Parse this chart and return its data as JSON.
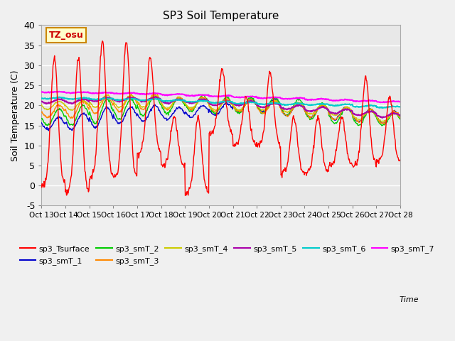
{
  "title": "SP3 Soil Temperature",
  "ylabel": "Soil Temperature (C)",
  "ylim": [
    -5,
    40
  ],
  "ytick_values": [
    -5,
    0,
    5,
    10,
    15,
    20,
    25,
    30,
    35,
    40
  ],
  "xtick_labels": [
    "Oct 13",
    "Oct 14",
    "Oct 15",
    "Oct 16",
    "Oct 17",
    "Oct 18",
    "Oct 19",
    "Oct 20",
    "Oct 21",
    "Oct 22",
    "Oct 23",
    "Oct 24",
    "Oct 25",
    "Oct 26",
    "Oct 27",
    "Oct 28"
  ],
  "annotation_text": "TZ_osu",
  "annotation_color": "#cc0000",
  "annotation_bg": "#ffffcc",
  "annotation_border": "#cc8800",
  "series_colors": {
    "sp3_Tsurface": "#ff0000",
    "sp3_smT_1": "#0000cc",
    "sp3_smT_2": "#00cc00",
    "sp3_smT_3": "#ff8800",
    "sp3_smT_4": "#cccc00",
    "sp3_smT_5": "#aa00aa",
    "sp3_smT_6": "#00cccc",
    "sp3_smT_7": "#ff00ff"
  },
  "fig_facecolor": "#f0f0f0",
  "plot_facecolor": "#e8e8e8",
  "grid_color": "#ffffff"
}
